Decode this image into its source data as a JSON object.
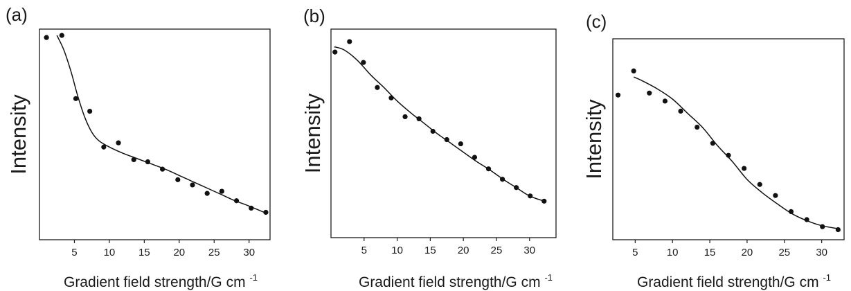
{
  "chart_data": [
    {
      "type": "scatter",
      "panel_label": "(a)",
      "xlabel": "Gradient field strength/G cm",
      "xlabel_sup": "-1",
      "ylabel": "Intensity",
      "xlim": [
        0,
        33
      ],
      "ylim": [
        0,
        1
      ],
      "yticks_shown": false,
      "xticks": [
        5,
        10,
        15,
        20,
        25,
        30
      ],
      "points": {
        "x": [
          1.0,
          3.2,
          5.2,
          7.2,
          9.2,
          11.3,
          13.5,
          15.5,
          17.6,
          19.8,
          21.9,
          24.0,
          26.1,
          28.2,
          30.3,
          32.4
        ],
        "y": [
          0.96,
          0.97,
          0.67,
          0.61,
          0.44,
          0.46,
          0.38,
          0.37,
          0.335,
          0.285,
          0.26,
          0.22,
          0.23,
          0.185,
          0.15,
          0.13
        ]
      },
      "fit": {
        "x": [
          2.5,
          3.5,
          4.5,
          5.5,
          6.5,
          7.5,
          8.5,
          10,
          12,
          14,
          16,
          18,
          20,
          22,
          24,
          26,
          28,
          30,
          32.5
        ],
        "y": [
          0.97,
          0.9,
          0.8,
          0.68,
          0.58,
          0.51,
          0.47,
          0.44,
          0.41,
          0.385,
          0.36,
          0.335,
          0.305,
          0.275,
          0.245,
          0.215,
          0.185,
          0.16,
          0.125
        ]
      }
    },
    {
      "type": "scatter",
      "panel_label": "(b)",
      "xlabel": "Gradient field strength/G cm",
      "xlabel_sup": "-1",
      "ylabel": "Intensity",
      "xlim": [
        0,
        34
      ],
      "ylim": [
        0,
        1
      ],
      "yticks_shown": false,
      "xticks": [
        5,
        10,
        15,
        20,
        25,
        30
      ],
      "points": {
        "x": [
          0.6,
          2.8,
          4.9,
          7.0,
          9.1,
          11.2,
          13.3,
          15.4,
          17.5,
          19.6,
          21.7,
          23.8,
          25.9,
          28.0,
          30.1,
          32.2
        ],
        "y": [
          0.89,
          0.94,
          0.84,
          0.72,
          0.67,
          0.58,
          0.57,
          0.51,
          0.47,
          0.45,
          0.385,
          0.33,
          0.28,
          0.24,
          0.2,
          0.175
        ]
      },
      "fit": {
        "x": [
          0.5,
          2,
          4,
          6,
          8,
          10,
          12,
          14,
          16,
          18,
          20,
          22,
          24,
          26,
          28,
          30,
          32.2
        ],
        "y": [
          0.915,
          0.9,
          0.85,
          0.78,
          0.72,
          0.655,
          0.6,
          0.55,
          0.5,
          0.455,
          0.41,
          0.365,
          0.325,
          0.28,
          0.24,
          0.2,
          0.175
        ]
      }
    },
    {
      "type": "scatter",
      "panel_label": "(c)",
      "xlabel": "Gradient field strength/G cm",
      "xlabel_sup": "-1",
      "ylabel": "Intensity",
      "xlim": [
        2,
        33
      ],
      "ylim": [
        0,
        1
      ],
      "yticks_shown": false,
      "xticks": [
        5,
        10,
        15,
        20,
        25,
        30
      ],
      "points": {
        "x": [
          2.7,
          4.8,
          6.9,
          9.0,
          11.1,
          13.3,
          15.4,
          17.5,
          19.6,
          21.7,
          23.8,
          25.9,
          28.0,
          30.1,
          32.2
        ],
        "y": [
          0.72,
          0.84,
          0.73,
          0.69,
          0.64,
          0.56,
          0.48,
          0.42,
          0.355,
          0.275,
          0.22,
          0.14,
          0.1,
          0.065,
          0.05
        ]
      },
      "fit": {
        "x": [
          4.8,
          6,
          8,
          10,
          12,
          14,
          16,
          18,
          20,
          22,
          24,
          26,
          28,
          30,
          32.2
        ],
        "y": [
          0.81,
          0.79,
          0.75,
          0.7,
          0.63,
          0.56,
          0.47,
          0.39,
          0.3,
          0.235,
          0.18,
          0.13,
          0.095,
          0.07,
          0.055
        ]
      }
    }
  ]
}
